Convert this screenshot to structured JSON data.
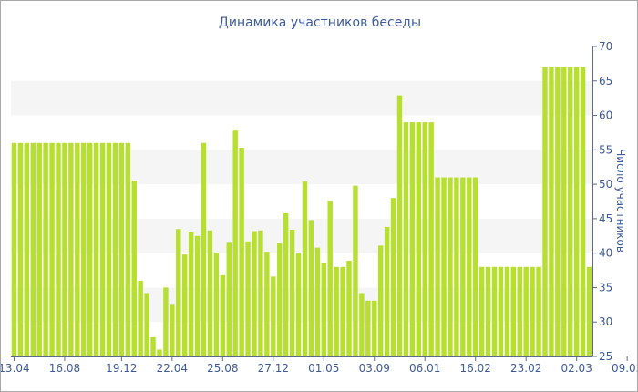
{
  "colors": {
    "bar": "#b6df2f",
    "band": "#f5f5f5",
    "axis": "#5a6b8c",
    "text": "#3d5a9a"
  },
  "chart_data": {
    "type": "bar",
    "title": "Динамика участников беседы",
    "xlabel": "",
    "ylabel": "Число участников",
    "y_axis_side": "right",
    "ylim": [
      25,
      70
    ],
    "yticks": [
      25,
      30,
      35,
      40,
      45,
      50,
      55,
      60,
      65,
      70
    ],
    "grid": "alternating horizontal bands",
    "legend": "none",
    "xticks": [
      {
        "label": "13.04",
        "index": 0
      },
      {
        "label": "16.08",
        "index": 8
      },
      {
        "label": "19.12",
        "index": 17
      },
      {
        "label": "22.04",
        "index": 25
      },
      {
        "label": "25.08",
        "index": 33
      },
      {
        "label": "27.12",
        "index": 41
      },
      {
        "label": "01.05",
        "index": 49
      },
      {
        "label": "03.09",
        "index": 57
      },
      {
        "label": "06.01",
        "index": 65
      },
      {
        "label": "16.02",
        "index": 73
      },
      {
        "label": "23.02",
        "index": 81
      },
      {
        "label": "02.03",
        "index": 89
      },
      {
        "label": "09.03",
        "index": 97
      }
    ],
    "values": [
      56,
      56,
      56,
      56,
      56,
      56,
      56,
      56,
      56,
      56,
      56,
      56,
      56,
      56,
      56,
      56,
      56,
      56,
      56,
      50.5,
      36,
      34.2,
      27.8,
      26,
      35,
      32.5,
      43.5,
      39.8,
      43,
      42.5,
      56,
      43.3,
      40.1,
      36.8,
      41.5,
      57.8,
      55.3,
      41.7,
      43.2,
      43.3,
      40.2,
      36.6,
      41.4,
      45.8,
      43.4,
      40.1,
      50.4,
      44.8,
      40.8,
      38.6,
      47.6,
      38,
      38,
      38.9,
      49.8,
      34.2,
      33.1,
      33.1,
      41.1,
      43.8,
      48,
      62.9,
      59,
      59,
      59,
      59,
      59,
      51,
      51,
      51,
      51,
      51,
      51,
      51,
      38,
      38,
      38,
      38,
      38,
      38,
      38,
      38,
      38,
      38,
      67,
      67,
      67,
      67,
      67,
      67,
      67,
      38
    ]
  }
}
